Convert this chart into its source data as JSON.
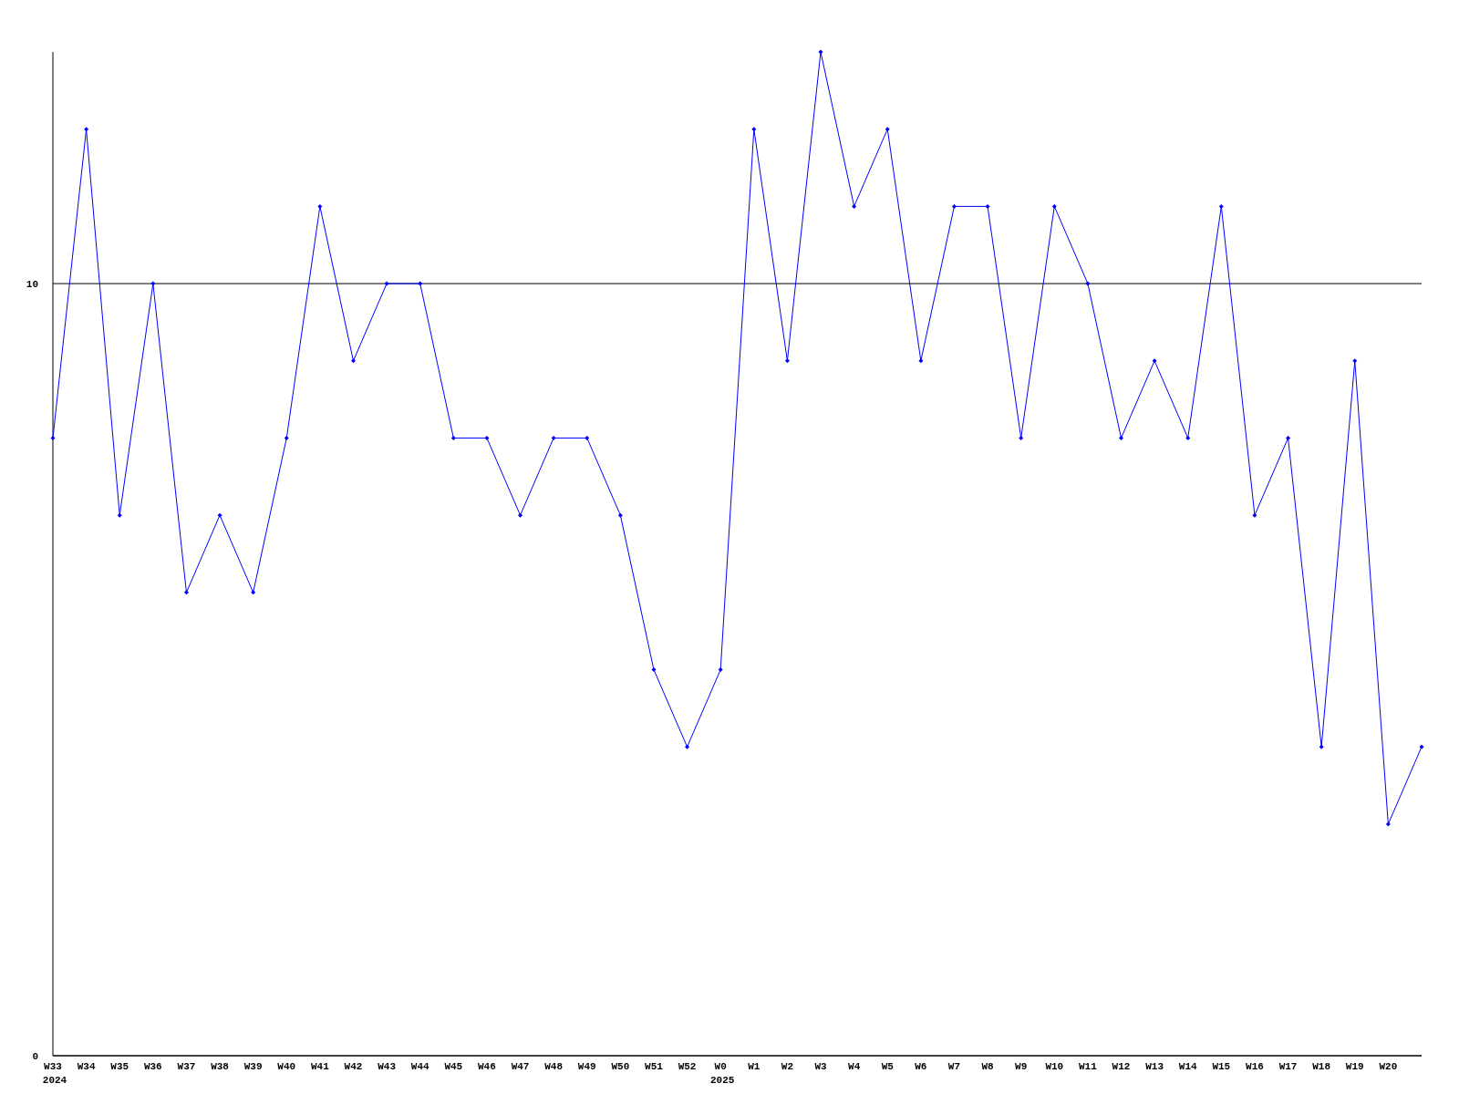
{
  "chart_data": {
    "type": "line",
    "categories": [
      "W33\n2024",
      "W34",
      "W35",
      "W36",
      "W37",
      "W38",
      "W39",
      "W40",
      "W41",
      "W42",
      "W43",
      "W44",
      "W45",
      "W46",
      "W47",
      "W48",
      "W49",
      "W50",
      "W51",
      "W52",
      "W0\n2025",
      "W1",
      "W2",
      "W3",
      "W4",
      "W5",
      "W6",
      "W7",
      "W8",
      "W9",
      "W10",
      "W11",
      "W12",
      "W13",
      "W14",
      "W15",
      "W16",
      "W17",
      "W18",
      "W19",
      "W20",
      null
    ],
    "series": [
      {
        "color": "#0000ff",
        "values": [
          8,
          12,
          7,
          10,
          6,
          7,
          6,
          8,
          11,
          9,
          10,
          10,
          8,
          8,
          7,
          8,
          8,
          7,
          5,
          4,
          5,
          12,
          9,
          13,
          11,
          12,
          9,
          11,
          11,
          8,
          11,
          10,
          8,
          9,
          8,
          11,
          7,
          8,
          4,
          9,
          3,
          4
        ]
      }
    ],
    "ylim": [
      0,
      13
    ],
    "yticks": [
      0,
      10
    ],
    "grid": "y",
    "marker": "diamond"
  }
}
